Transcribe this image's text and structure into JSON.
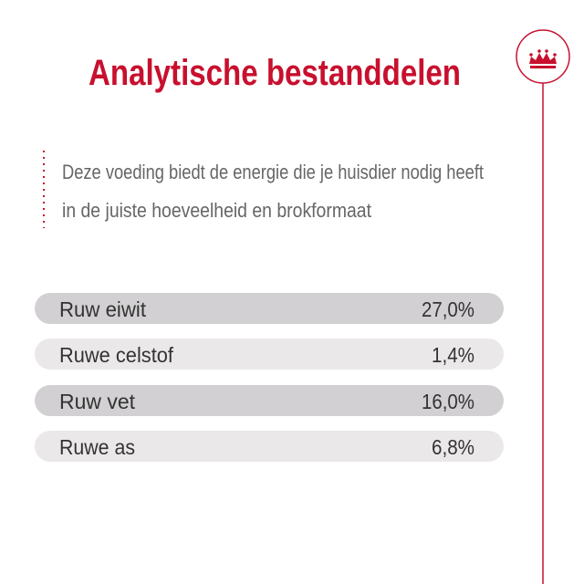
{
  "title": "Analytische bestanddelen",
  "description": [
    "Deze voeding biedt de energie die je huisdier nodig heeft",
    "in de juiste hoeveelheid en brokformaat"
  ],
  "table": {
    "rows": [
      [
        "Ruw eiwit",
        "27,0%"
      ],
      [
        "Ruwe celstof",
        "1,4%"
      ],
      [
        "Ruw vet",
        "16,0%"
      ],
      [
        "Ruwe as",
        "6,8%"
      ]
    ]
  }
}
